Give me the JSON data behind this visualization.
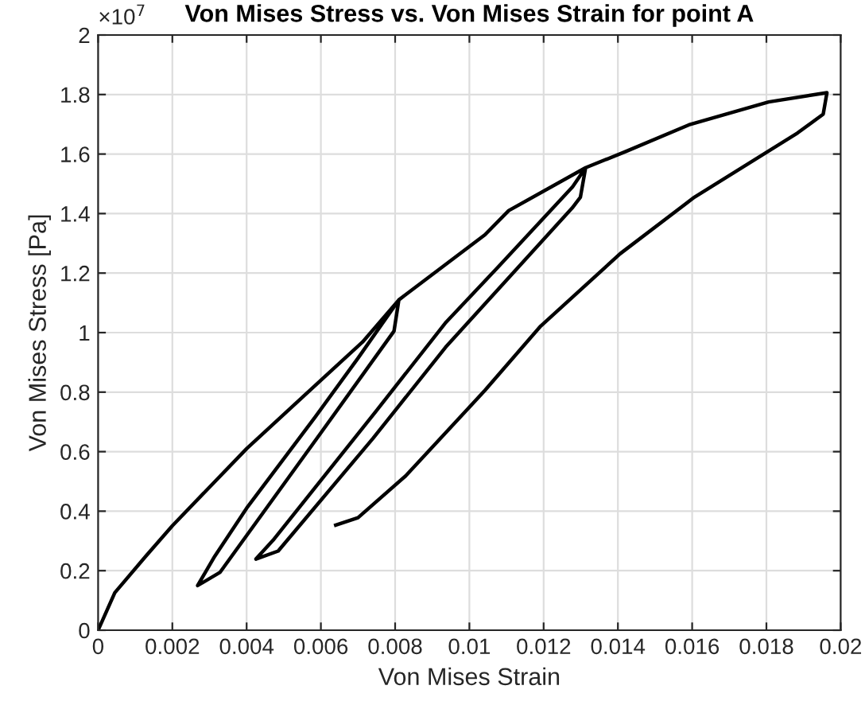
{
  "chart_data": {
    "type": "line",
    "title": "Von Mises Stress vs. Von Mises Strain for point A",
    "xlabel": "Von Mises Strain",
    "ylabel": "Von Mises Stress [Pa]",
    "annotations": [
      "×10$^{7}$"
    ],
    "series": [
      {
        "color": "#000000",
        "x": [
          0,
          0.00045,
          0.00128,
          0.002,
          0.004,
          0.006,
          0.00712,
          0.0081,
          0.00797,
          0.006,
          0.00328,
          0.00268,
          0.00314,
          0.004,
          0.00585,
          0.007,
          0.0081,
          0.01042,
          0.01106,
          0.01313,
          0.01299,
          0.01277,
          0.00936,
          0.0074,
          0.00485,
          0.00425,
          0.00471,
          0.00748,
          0.00935,
          0.01078,
          0.01278,
          0.01313,
          0.0142,
          0.01591,
          0.01806,
          0.01963,
          0.01953,
          0.01884,
          0.01606,
          0.01406,
          0.01192,
          0.01042,
          0.00828,
          0.007,
          0.0064
        ],
        "values": [
          0,
          0.126,
          0.248,
          0.351,
          0.61,
          0.84,
          0.968,
          1.11,
          1.005,
          0.663,
          0.194,
          0.15,
          0.248,
          0.41,
          0.717,
          0.914,
          1.11,
          1.329,
          1.41,
          1.554,
          1.455,
          1.419,
          0.951,
          0.644,
          0.266,
          0.239,
          0.302,
          0.735,
          1.032,
          1.221,
          1.49,
          1.554,
          1.608,
          1.698,
          1.775,
          1.806,
          1.734,
          1.671,
          1.455,
          1.265,
          1.022,
          0.806,
          0.518,
          0.378,
          0.353
        ]
      }
    ],
    "xlim": [
      0,
      0.02
    ],
    "xticks": [
      0,
      0.002,
      0.004,
      0.006,
      0.008,
      0.01,
      0.012,
      0.014,
      0.016,
      0.018,
      0.02
    ],
    "ylim": [
      0,
      2
    ],
    "yticks": [
      0,
      0.2,
      0.4,
      0.6,
      0.8,
      1,
      1.2,
      1.4,
      1.6,
      1.8,
      2
    ],
    "grid": true,
    "marker": "none",
    "line_style": "solid"
  }
}
